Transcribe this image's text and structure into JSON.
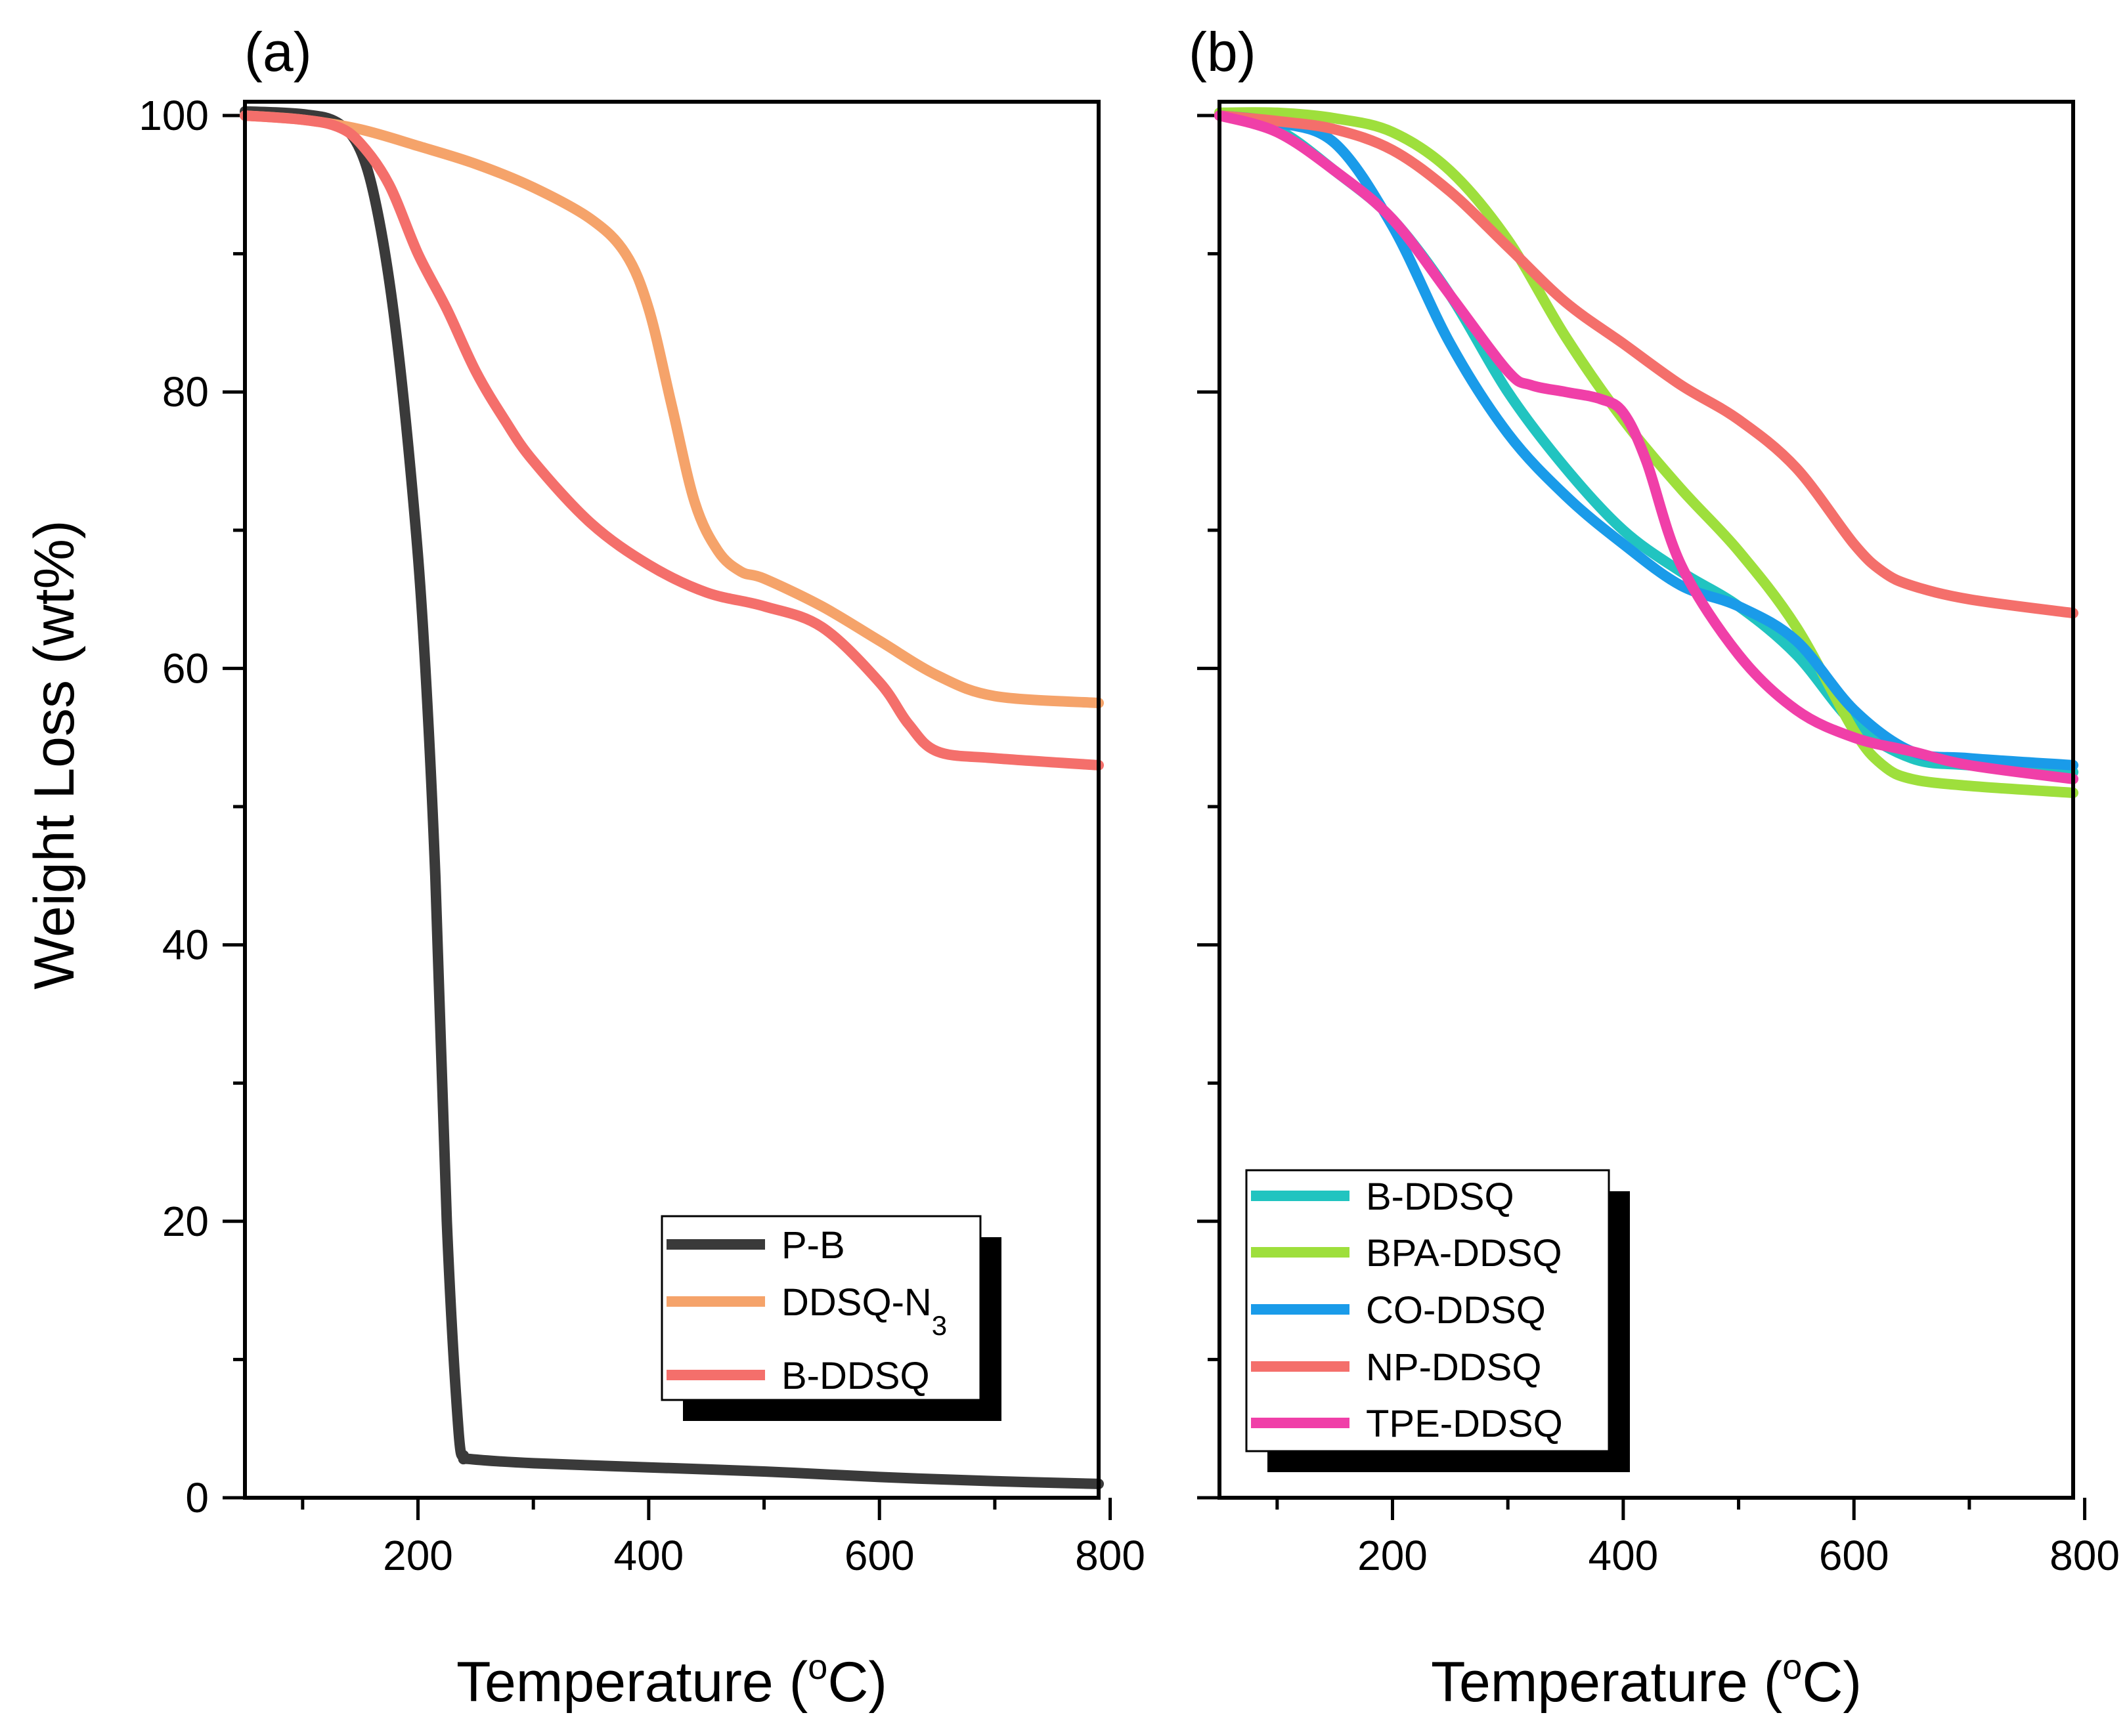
{
  "chart_data": [
    {
      "type": "line",
      "panel_label": "(a)",
      "xlabel": "Temperature (",
      "xlabel_sup": "o",
      "xlabel_suffix": "C)",
      "ylabel": "Weight Loss (wt%)",
      "xlim": [
        50,
        790
      ],
      "ylim": [
        0,
        101
      ],
      "xticks": [
        200,
        400,
        600,
        800
      ],
      "yticks": [
        0,
        20,
        40,
        60,
        80,
        100
      ],
      "legend_position": "bottom-right",
      "series": [
        {
          "name": "P-B",
          "color": "#3a3a3a",
          "x": [
            50,
            100,
            130,
            150,
            165,
            180,
            195,
            205,
            215,
            225,
            235,
            240,
            245,
            300,
            400,
            500,
            600,
            700,
            790
          ],
          "y": [
            100.3,
            100.1,
            99.5,
            97.5,
            93,
            85,
            73,
            62,
            45,
            20,
            5,
            3,
            2.8,
            2.5,
            2.2,
            1.9,
            1.5,
            1.2,
            1.0
          ]
        },
        {
          "name": "DDSQ-N",
          "name_sub": "3",
          "color": "#f5a36a",
          "x": [
            50,
            100,
            150,
            200,
            250,
            300,
            350,
            380,
            400,
            420,
            440,
            460,
            480,
            500,
            550,
            600,
            650,
            700,
            790
          ],
          "y": [
            100,
            99.7,
            99,
            97.8,
            96.5,
            94.8,
            92.5,
            90,
            86,
            79,
            72,
            68.5,
            67,
            66.5,
            64.5,
            62,
            59.5,
            58,
            57.5
          ]
        },
        {
          "name": "B-DDSQ",
          "color": "#f46f6b",
          "x": [
            50,
            100,
            130,
            150,
            175,
            200,
            225,
            250,
            275,
            300,
            350,
            400,
            450,
            500,
            550,
            600,
            625,
            650,
            700,
            790
          ],
          "y": [
            100,
            99.7,
            99.2,
            98,
            95,
            90,
            86,
            81.5,
            78,
            75,
            70.5,
            67.5,
            65.5,
            64.5,
            63,
            59,
            56,
            54,
            53.5,
            53
          ]
        }
      ]
    },
    {
      "type": "line",
      "panel_label": "(b)",
      "xlabel": "Temperature (",
      "xlabel_sup": "o",
      "xlabel_suffix": "C)",
      "xlim": [
        50,
        790
      ],
      "ylim": [
        0,
        101
      ],
      "xticks": [
        200,
        400,
        600,
        800
      ],
      "yticks": [
        0,
        20,
        40,
        60,
        80,
        100
      ],
      "legend_position": "bottom-left",
      "series": [
        {
          "name": "B-DDSQ",
          "color": "#21c4c0",
          "x": [
            50,
            100,
            150,
            200,
            250,
            300,
            350,
            400,
            450,
            500,
            550,
            600,
            650,
            700,
            790
          ],
          "y": [
            100,
            99,
            96,
            92.5,
            87,
            80,
            74.5,
            70,
            67,
            64.5,
            61,
            56,
            53.5,
            53,
            52.5
          ]
        },
        {
          "name": "BPA-DDSQ",
          "color": "#9edf3c",
          "x": [
            50,
            100,
            150,
            200,
            250,
            300,
            350,
            400,
            450,
            500,
            550,
            600,
            625,
            650,
            700,
            790
          ],
          "y": [
            100.2,
            100.2,
            99.8,
            98.8,
            96,
            91,
            84,
            78,
            73,
            68.5,
            63,
            55.5,
            53,
            52,
            51.5,
            51
          ]
        },
        {
          "name": "CO-DDSQ",
          "color": "#1a9be9",
          "x": [
            50,
            100,
            150,
            200,
            250,
            300,
            350,
            400,
            450,
            500,
            550,
            600,
            650,
            700,
            790
          ],
          "y": [
            100,
            99.5,
            98,
            92,
            83.5,
            77,
            72.5,
            69,
            66,
            64.5,
            62,
            57,
            54,
            53.5,
            53
          ]
        },
        {
          "name": "NP-DDSQ",
          "color": "#f46f6b",
          "x": [
            50,
            100,
            150,
            200,
            250,
            300,
            350,
            400,
            450,
            500,
            550,
            600,
            625,
            650,
            700,
            790
          ],
          "y": [
            100,
            99.6,
            99,
            97.5,
            94.5,
            90.5,
            86.5,
            83.5,
            80.5,
            78,
            74.5,
            69,
            67,
            66,
            65,
            64
          ]
        },
        {
          "name": "TPE-DDSQ",
          "color": "#f03fa8",
          "x": [
            50,
            100,
            150,
            200,
            250,
            300,
            320,
            350,
            380,
            400,
            420,
            450,
            500,
            550,
            600,
            650,
            700,
            790
          ],
          "y": [
            100,
            98.8,
            96,
            92.5,
            87,
            81.5,
            80.5,
            80,
            79.5,
            78.5,
            75,
            67.5,
            61,
            57,
            55,
            54,
            53,
            52
          ]
        }
      ]
    }
  ]
}
